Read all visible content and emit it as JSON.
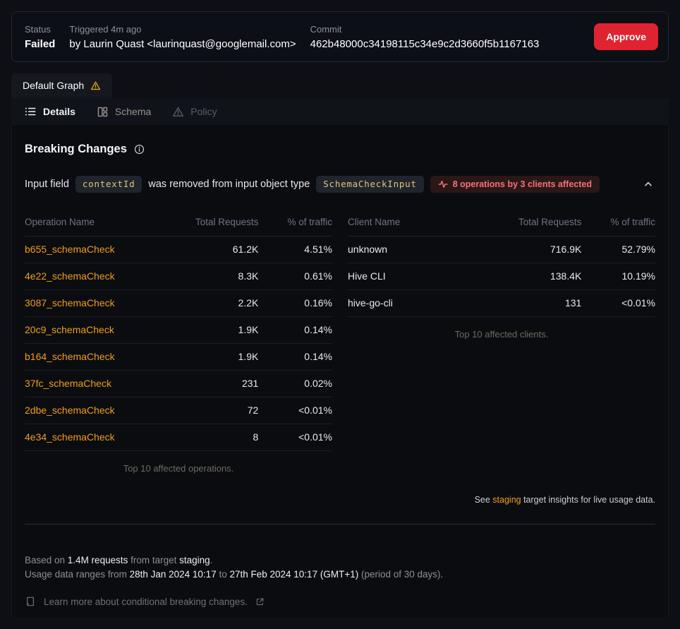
{
  "header": {
    "status_label": "Status",
    "status_value": "Failed",
    "triggered_label": "Triggered 4m ago",
    "triggered_value": "by Laurin Quast <laurinquast@googlemail.com>",
    "commit_label": "Commit",
    "commit_value": "462b48000c34198115c34e9c2d3660f5b1167163",
    "approve_label": "Approve"
  },
  "tabs": {
    "graph_tab_label": "Default Graph",
    "nav": [
      {
        "label": "Details",
        "active": true
      },
      {
        "label": "Schema",
        "active": false
      },
      {
        "label": "Policy",
        "active": false
      }
    ]
  },
  "breaking": {
    "title": "Breaking Changes",
    "change": {
      "prefix": "Input field",
      "code_field": "contextId",
      "middle": "was removed from input object type",
      "code_type": "SchemaCheckInput",
      "badge_text": "8 operations by 3 clients affected"
    }
  },
  "operations_table": {
    "headers": [
      "Operation Name",
      "Total Requests",
      "% of traffic"
    ],
    "rows": [
      [
        "b655_schemaCheck",
        "61.2K",
        "4.51%"
      ],
      [
        "4e22_schemaCheck",
        "8.3K",
        "0.61%"
      ],
      [
        "3087_schemaCheck",
        "2.2K",
        "0.16%"
      ],
      [
        "20c9_schemaCheck",
        "1.9K",
        "0.14%"
      ],
      [
        "b164_schemaCheck",
        "1.9K",
        "0.14%"
      ],
      [
        "37fc_schemaCheck",
        "231",
        "0.02%"
      ],
      [
        "2dbe_schemaCheck",
        "72",
        "<0.01%"
      ],
      [
        "4e34_schemaCheck",
        "8",
        "<0.01%"
      ]
    ],
    "caption": "Top 10 affected operations."
  },
  "clients_table": {
    "headers": [
      "Client Name",
      "Total Requests",
      "% of traffic"
    ],
    "rows": [
      [
        "unknown",
        "716.9K",
        "52.79%"
      ],
      [
        "Hive CLI",
        "138.4K",
        "10.19%"
      ],
      [
        "hive-go-cli",
        "131",
        "<0.01%"
      ]
    ],
    "caption": "Top 10 affected clients."
  },
  "insights_note_parts": [
    {
      "text": "See "
    },
    {
      "text": "staging",
      "link": true
    },
    {
      "text": " target insights for live usage data."
    }
  ],
  "footer": {
    "line1_parts": [
      {
        "text": "Based on "
      },
      {
        "text": "1.4M requests",
        "strong": true
      },
      {
        "text": " from target "
      },
      {
        "text": "staging",
        "strong": true
      },
      {
        "text": "."
      }
    ],
    "line2_parts": [
      {
        "text": "Usage data ranges from "
      },
      {
        "text": "28th Jan 2024 10:17",
        "strong": true
      },
      {
        "text": " to "
      },
      {
        "text": "27th Feb 2024 10:17 (GMT+1)",
        "strong": true
      },
      {
        "text": " (period of 30 days)."
      }
    ],
    "learn_more_label": "Learn more about conditional breaking changes."
  },
  "colors": {
    "accent_orange": "#f59e0b",
    "danger_red": "#e02330",
    "badge_red_text": "#f3717c",
    "warning_yellow": "#eab308"
  }
}
